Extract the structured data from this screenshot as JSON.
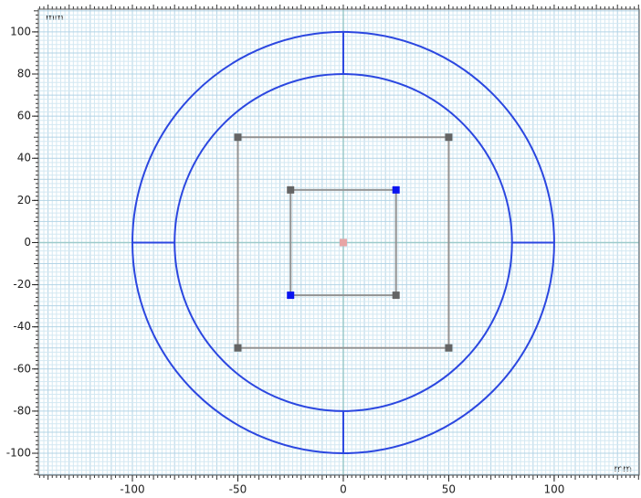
{
  "view": {
    "x_unit": "mm",
    "y_unit": "mm",
    "xlim": [
      -144.6,
      140.3
    ],
    "ylim": [
      -110.4,
      110.8
    ],
    "xticks": [
      -100,
      -50,
      0,
      50,
      100
    ],
    "yticks": [
      -100,
      -80,
      -60,
      -40,
      -20,
      0,
      20,
      40,
      60,
      80,
      100
    ],
    "minor_step": 2,
    "major_step": 10,
    "grid_color": "#d3e8f2",
    "major_grid_color": "#b3d4e6",
    "axis_color": "#9ccaca"
  },
  "geometry": {
    "circles": [
      {
        "cx": 0,
        "cy": 0,
        "r": 100,
        "color": "#2b47e0"
      },
      {
        "cx": 0,
        "cy": 0,
        "r": 80,
        "color": "#2b47e0"
      }
    ],
    "segments": [
      {
        "x1": -100,
        "y1": 0,
        "x2": -80,
        "y2": 0,
        "color": "#2b47e0"
      },
      {
        "x1": 80,
        "y1": 0,
        "x2": 100,
        "y2": 0,
        "color": "#2b47e0"
      },
      {
        "x1": 0,
        "y1": 80,
        "x2": 0,
        "y2": 100,
        "color": "#2b47e0"
      },
      {
        "x1": 0,
        "y1": -100,
        "x2": 0,
        "y2": -80,
        "color": "#2b47e0"
      }
    ],
    "rectangles": [
      {
        "x1": -50,
        "y1": -50,
        "x2": 50,
        "y2": 50,
        "color": "#939393"
      },
      {
        "x1": -25,
        "y1": -25,
        "x2": 25,
        "y2": 25,
        "color": "#939393"
      }
    ],
    "points": [
      {
        "x": -50,
        "y": 50,
        "color": "#646464"
      },
      {
        "x": 50,
        "y": 50,
        "color": "#646464"
      },
      {
        "x": -50,
        "y": -50,
        "color": "#646464"
      },
      {
        "x": 50,
        "y": -50,
        "color": "#646464"
      },
      {
        "x": -25,
        "y": 25,
        "color": "#646464"
      },
      {
        "x": 25,
        "y": 25,
        "color": "#0a14f0"
      },
      {
        "x": -25,
        "y": -25,
        "color": "#0a14f0"
      },
      {
        "x": 25,
        "y": -25,
        "color": "#646464"
      },
      {
        "x": 0,
        "y": 0,
        "color": "#e8a4a4"
      }
    ]
  }
}
